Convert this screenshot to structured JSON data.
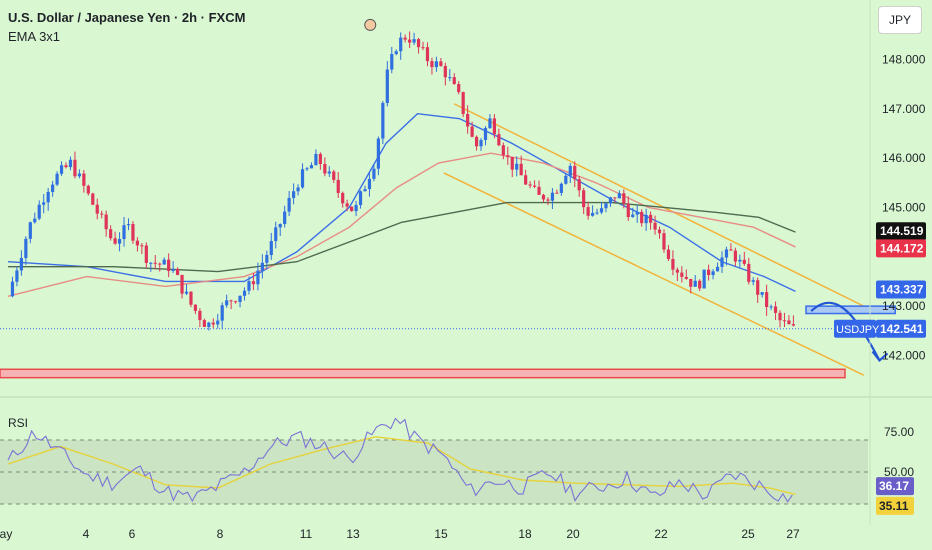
{
  "header": {
    "title": "U.S. Dollar / Japanese Yen · 2h · FXCM",
    "indicator": "EMA 3x1",
    "currency_button": "JPY"
  },
  "rsi_panel": {
    "label": "RSI"
  },
  "colors": {
    "background": "#d9f7d0",
    "candle_up": "#2f6fe0",
    "candle_down": "#e0335a",
    "ema_fast": "#3b6fe8",
    "ema_mid": "#e88c86",
    "ema_slow": "#4f6b4f",
    "channel": "#f2b33a",
    "support": "#e84a4a",
    "rsi": "#7b72d6",
    "rsi_ma": "#e6d23a"
  },
  "chart_data": [
    {
      "type": "line",
      "subtype": "candlestick",
      "title": "U.S. Dollar / Japanese Yen · 2h · FXCM",
      "x_labels": [
        "ay",
        "4",
        "6",
        "8",
        "11",
        "13",
        "15",
        "18",
        "20",
        "22",
        "25",
        "27"
      ],
      "y_ticks": [
        142.0,
        143.0,
        145.0,
        146.0,
        147.0,
        148.0
      ],
      "ylim": [
        141.3,
        148.8
      ],
      "price_labels": [
        {
          "text": "144.519",
          "value": 144.519,
          "bg": "#111111",
          "fg": "#ffffff"
        },
        {
          "text": "144.172",
          "value": 144.172,
          "bg": "#e8334a",
          "fg": "#ffffff"
        },
        {
          "text": "143.337",
          "value": 143.337,
          "bg": "#3366e8",
          "fg": "#ffffff"
        },
        {
          "text": "142.541",
          "value": 142.541,
          "bg": "#3366e8",
          "fg": "#ffffff"
        }
      ],
      "symbol_tag": "USDJPY",
      "last_price": 142.541,
      "close_path": [
        {
          "t": 0,
          "v": 143.2
        },
        {
          "t": 0.4,
          "v": 144.6
        },
        {
          "t": 0.8,
          "v": 145.5
        },
        {
          "t": 1.2,
          "v": 145.9
        },
        {
          "t": 1.6,
          "v": 145.1
        },
        {
          "t": 2.0,
          "v": 144.3
        },
        {
          "t": 2.3,
          "v": 144.6
        },
        {
          "t": 2.7,
          "v": 143.9
        },
        {
          "t": 3.1,
          "v": 143.8
        },
        {
          "t": 3.5,
          "v": 143.0
        },
        {
          "t": 3.8,
          "v": 142.6
        },
        {
          "t": 4.2,
          "v": 143.1
        },
        {
          "t": 4.6,
          "v": 143.4
        },
        {
          "t": 5.0,
          "v": 144.2
        },
        {
          "t": 5.5,
          "v": 145.5
        },
        {
          "t": 5.9,
          "v": 146.0
        },
        {
          "t": 6.3,
          "v": 145.3
        },
        {
          "t": 6.6,
          "v": 144.9
        },
        {
          "t": 7.0,
          "v": 146.0
        },
        {
          "t": 7.2,
          "v": 147.6
        },
        {
          "t": 7.4,
          "v": 148.3
        },
        {
          "t": 7.6,
          "v": 148.5
        },
        {
          "t": 8.0,
          "v": 148.0
        },
        {
          "t": 8.3,
          "v": 147.8
        },
        {
          "t": 8.6,
          "v": 147.2
        },
        {
          "t": 8.9,
          "v": 146.2
        },
        {
          "t": 9.2,
          "v": 146.8
        },
        {
          "t": 9.5,
          "v": 146.0
        },
        {
          "t": 9.8,
          "v": 145.6
        },
        {
          "t": 10.1,
          "v": 145.2
        },
        {
          "t": 10.4,
          "v": 145.3
        },
        {
          "t": 10.7,
          "v": 145.9
        },
        {
          "t": 11.0,
          "v": 144.9
        },
        {
          "t": 11.3,
          "v": 144.9
        },
        {
          "t": 11.6,
          "v": 145.3
        },
        {
          "t": 11.9,
          "v": 144.8
        },
        {
          "t": 12.3,
          "v": 144.7
        },
        {
          "t": 12.7,
          "v": 143.8
        },
        {
          "t": 13.1,
          "v": 143.4
        },
        {
          "t": 13.5,
          "v": 143.9
        },
        {
          "t": 13.8,
          "v": 144.1
        },
        {
          "t": 14.1,
          "v": 143.6
        },
        {
          "t": 14.4,
          "v": 143.1
        },
        {
          "t": 14.7,
          "v": 142.7
        },
        {
          "t": 15.0,
          "v": 142.5
        }
      ],
      "emas": [
        {
          "points": [
            [
              0,
              143.9
            ],
            [
              1.5,
              143.8
            ],
            [
              3,
              143.5
            ],
            [
              4.5,
              143.5
            ],
            [
              5.5,
              144.1
            ],
            [
              6.5,
              145.0
            ],
            [
              7.2,
              146.3
            ],
            [
              7.8,
              146.9
            ],
            [
              8.6,
              146.8
            ],
            [
              9.6,
              146.3
            ],
            [
              10.6,
              145.7
            ],
            [
              11.6,
              145.1
            ],
            [
              12.6,
              144.6
            ],
            [
              13.6,
              143.9
            ],
            [
              14.4,
              143.6
            ],
            [
              15.0,
              143.3
            ]
          ]
        },
        {
          "points": [
            [
              0,
              143.2
            ],
            [
              1.5,
              143.6
            ],
            [
              3,
              143.4
            ],
            [
              4.5,
              143.6
            ],
            [
              5.5,
              144.0
            ],
            [
              6.5,
              144.6
            ],
            [
              7.4,
              145.4
            ],
            [
              8.2,
              145.9
            ],
            [
              9.2,
              146.1
            ],
            [
              10.2,
              145.9
            ],
            [
              11.2,
              145.5
            ],
            [
              12.2,
              145.0
            ],
            [
              13.2,
              144.8
            ],
            [
              14.2,
              144.6
            ],
            [
              15.0,
              144.2
            ]
          ]
        },
        {
          "points": [
            [
              0,
              143.8
            ],
            [
              2,
              143.8
            ],
            [
              4,
              143.7
            ],
            [
              5.5,
              143.9
            ],
            [
              6.5,
              144.3
            ],
            [
              7.5,
              144.7
            ],
            [
              8.5,
              144.9
            ],
            [
              9.5,
              145.1
            ],
            [
              10.5,
              145.1
            ],
            [
              11.5,
              145.1
            ],
            [
              12.5,
              145.0
            ],
            [
              13.5,
              144.9
            ],
            [
              14.3,
              144.8
            ],
            [
              15.0,
              144.5
            ]
          ]
        }
      ],
      "channel": {
        "upper": [
          [
            8.5,
            147.1
          ],
          [
            16.3,
            143.0
          ]
        ],
        "lower": [
          [
            8.3,
            145.7
          ],
          [
            16.3,
            141.6
          ]
        ]
      },
      "support_zone": [
        141.55,
        141.72
      ],
      "resistance_box": {
        "t": [
          15.2,
          16.9
        ],
        "v": [
          142.85,
          143.0
        ]
      },
      "projection": [
        [
          15.3,
          142.9
        ],
        [
          15.8,
          143.05
        ],
        [
          16.2,
          142.7
        ],
        [
          16.6,
          141.9
        ]
      ],
      "marker": {
        "t": 6.9,
        "v": 148.7
      }
    },
    {
      "type": "line",
      "title": "RSI",
      "y_ticks": [
        75.0,
        50.0,
        35.11
      ],
      "ylim": [
        20,
        95
      ],
      "band": [
        30,
        70
      ],
      "levels": [
        70,
        50,
        30
      ],
      "value_labels": [
        {
          "text": "36.17",
          "value": 36.17,
          "bg": "#6a5fc8",
          "fg": "#ffffff"
        },
        {
          "text": "35.11",
          "value": 35.11,
          "bg": "#f2d23a",
          "fg": "#1f2329"
        }
      ],
      "rsi": [
        [
          0,
          56
        ],
        [
          0.5,
          75
        ],
        [
          1,
          62
        ],
        [
          1.5,
          48
        ],
        [
          2,
          43
        ],
        [
          2.5,
          52
        ],
        [
          3,
          38
        ],
        [
          3.5,
          33
        ],
        [
          4,
          41
        ],
        [
          4.5,
          50
        ],
        [
          5,
          66
        ],
        [
          5.5,
          72
        ],
        [
          6,
          66
        ],
        [
          6.5,
          58
        ],
        [
          7,
          76
        ],
        [
          7.4,
          83
        ],
        [
          7.8,
          70
        ],
        [
          8.3,
          60
        ],
        [
          8.8,
          38
        ],
        [
          9.3,
          45
        ],
        [
          9.8,
          40
        ],
        [
          10.3,
          50
        ],
        [
          10.8,
          37
        ],
        [
          11.3,
          41
        ],
        [
          11.8,
          46
        ],
        [
          12.3,
          34
        ],
        [
          12.8,
          44
        ],
        [
          13.3,
          35
        ],
        [
          13.8,
          49
        ],
        [
          14.3,
          42
        ],
        [
          14.8,
          34
        ],
        [
          15.0,
          36
        ]
      ],
      "rsi_ma": [
        [
          0,
          55
        ],
        [
          1,
          66
        ],
        [
          2,
          55
        ],
        [
          3,
          42
        ],
        [
          4,
          40
        ],
        [
          5,
          55
        ],
        [
          6,
          64
        ],
        [
          7,
          72
        ],
        [
          8,
          68
        ],
        [
          8.8,
          52
        ],
        [
          9.8,
          45
        ],
        [
          10.8,
          43
        ],
        [
          11.8,
          42
        ],
        [
          12.8,
          41
        ],
        [
          13.8,
          43
        ],
        [
          14.5,
          40
        ],
        [
          15.0,
          36
        ]
      ]
    }
  ]
}
